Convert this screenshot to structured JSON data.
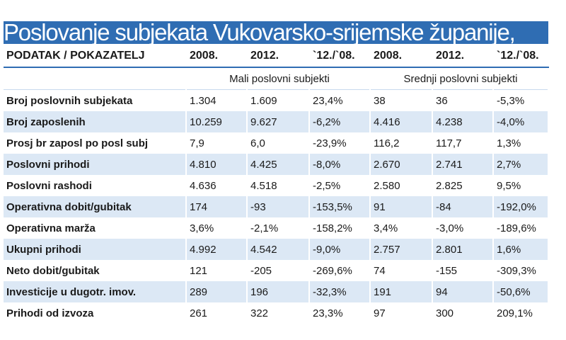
{
  "header": {
    "title": "Poslovanje subjekata Vukovarsko-srijemske županije,"
  },
  "table": {
    "columns": [
      "PODATAK / POKAZATELJ",
      "2008.",
      "2012.",
      "`12./`08.",
      "2008.",
      "2012.",
      "`12./`08."
    ],
    "groups": [
      "Mali poslovni subjekti",
      "Srednji poslovni subjekti"
    ],
    "rows": [
      [
        "Broj poslovnih subjekata",
        "1.304",
        "1.609",
        "23,4%",
        "38",
        "36",
        "-5,3%"
      ],
      [
        "Broj zaposlenih",
        "10.259",
        "9.627",
        "-6,2%",
        "4.416",
        "4.238",
        "-4,0%"
      ],
      [
        "Prosj br zaposl po posl subj",
        "7,9",
        "6,0",
        "-23,9%",
        "116,2",
        "117,7",
        "1,3%"
      ],
      [
        "Poslovni prihodi",
        "4.810",
        "4.425",
        "-8,0%",
        "2.670",
        "2.741",
        "2,7%"
      ],
      [
        "Poslovni rashodi",
        "4.636",
        "4.518",
        "-2,5%",
        "2.580",
        "2.825",
        "9,5%"
      ],
      [
        "Operativna dobit/gubitak",
        "174",
        "-93",
        "-153,5%",
        "91",
        "-84",
        "-192,0%"
      ],
      [
        "Operativna marža",
        "3,6%",
        "-2,1%",
        "-158,2%",
        "3,4%",
        "-3,0%",
        "-189,6%"
      ],
      [
        "Ukupni prihodi",
        "4.992",
        "4.542",
        "-9,0%",
        "2.757",
        "2.801",
        "1,6%"
      ],
      [
        "Neto dobit/gubitak",
        "121",
        "-205",
        "-269,6%",
        "74",
        "-155",
        "-309,3%"
      ],
      [
        "Investicije u dugotr. imov.",
        "289",
        "196",
        "-32,3%",
        "191",
        "94",
        "-50,6%"
      ],
      [
        "Prihodi od izvoza",
        "261",
        "322",
        "23,3%",
        "97",
        "300",
        "209,1%"
      ]
    ]
  }
}
